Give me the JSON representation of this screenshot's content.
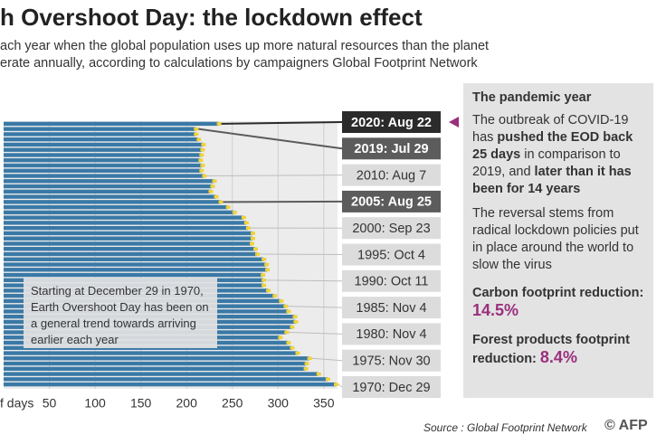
{
  "header": {
    "title": "h Overshoot Day: the lockdown effect",
    "subtitle_lines": [
      "ach year when the global population uses up more natural resources than the planet",
      "erate annually, according to calculations by campaigners Global Footprint Network"
    ]
  },
  "chart_data": {
    "type": "hbar",
    "x_label": "f days",
    "color": "#3a79a6",
    "end_marker_color": "#f0d23a",
    "grid": true,
    "xlim": [
      0,
      365
    ],
    "xticks": [
      50,
      100,
      150,
      200,
      250,
      300,
      350
    ],
    "values": [
      363,
      354,
      344,
      330,
      331,
      334,
      321,
      315,
      311,
      302,
      309,
      315,
      319,
      318,
      311,
      308,
      303,
      296,
      289,
      284,
      284,
      283,
      288,
      287,
      284,
      277,
      275,
      271,
      272,
      272,
      267,
      265,
      262,
      252,
      245,
      237,
      232,
      226,
      228,
      230,
      219,
      216,
      217,
      215,
      216,
      217,
      218,
      213,
      210,
      210,
      235
    ],
    "callouts": [
      {
        "label": "2020: Aug 22",
        "style": "dark"
      },
      {
        "label": "2019: Jul 29",
        "style": "medium"
      },
      {
        "label": "2010: Aug 7",
        "style": "light"
      },
      {
        "label": "2005: Aug 25",
        "style": "medium"
      },
      {
        "label": "2000: Sep 23",
        "style": "light"
      },
      {
        "label": "1995: Oct 4",
        "style": "light"
      },
      {
        "label": "1990: Oct 11",
        "style": "light"
      },
      {
        "label": "1985: Nov 4",
        "style": "light"
      },
      {
        "label": "1980: Nov 4",
        "style": "light"
      },
      {
        "label": "1975: Nov 30",
        "style": "light"
      },
      {
        "label": "1970: Dec 29",
        "style": "light"
      }
    ],
    "annotation": "Starting at December 29 in 1970, Earth Overshoot Day has been on a general trend towards arriving earlier each year"
  },
  "panel": {
    "heading": "The pandemic year",
    "paragraph1": [
      {
        "text": "The outbreak of COVID-19 has ",
        "bold": false
      },
      {
        "text": "pushed the EOD back 25 days",
        "bold": true
      },
      {
        "text": " in comparison to 2019, and ",
        "bold": false
      },
      {
        "text": "later than it has been for 14 years",
        "bold": true
      }
    ],
    "paragraph2": "The reversal stems from radical lockdown policies put in place around the world to slow the virus",
    "stats": [
      {
        "label": "Carbon footprint reduction:",
        "value": "14.5%"
      },
      {
        "label": "Forest products footprint reduction:",
        "value": "8.4%"
      }
    ]
  },
  "footer": {
    "source": "Source : Global Footprint Network",
    "logo": "© AFP"
  }
}
